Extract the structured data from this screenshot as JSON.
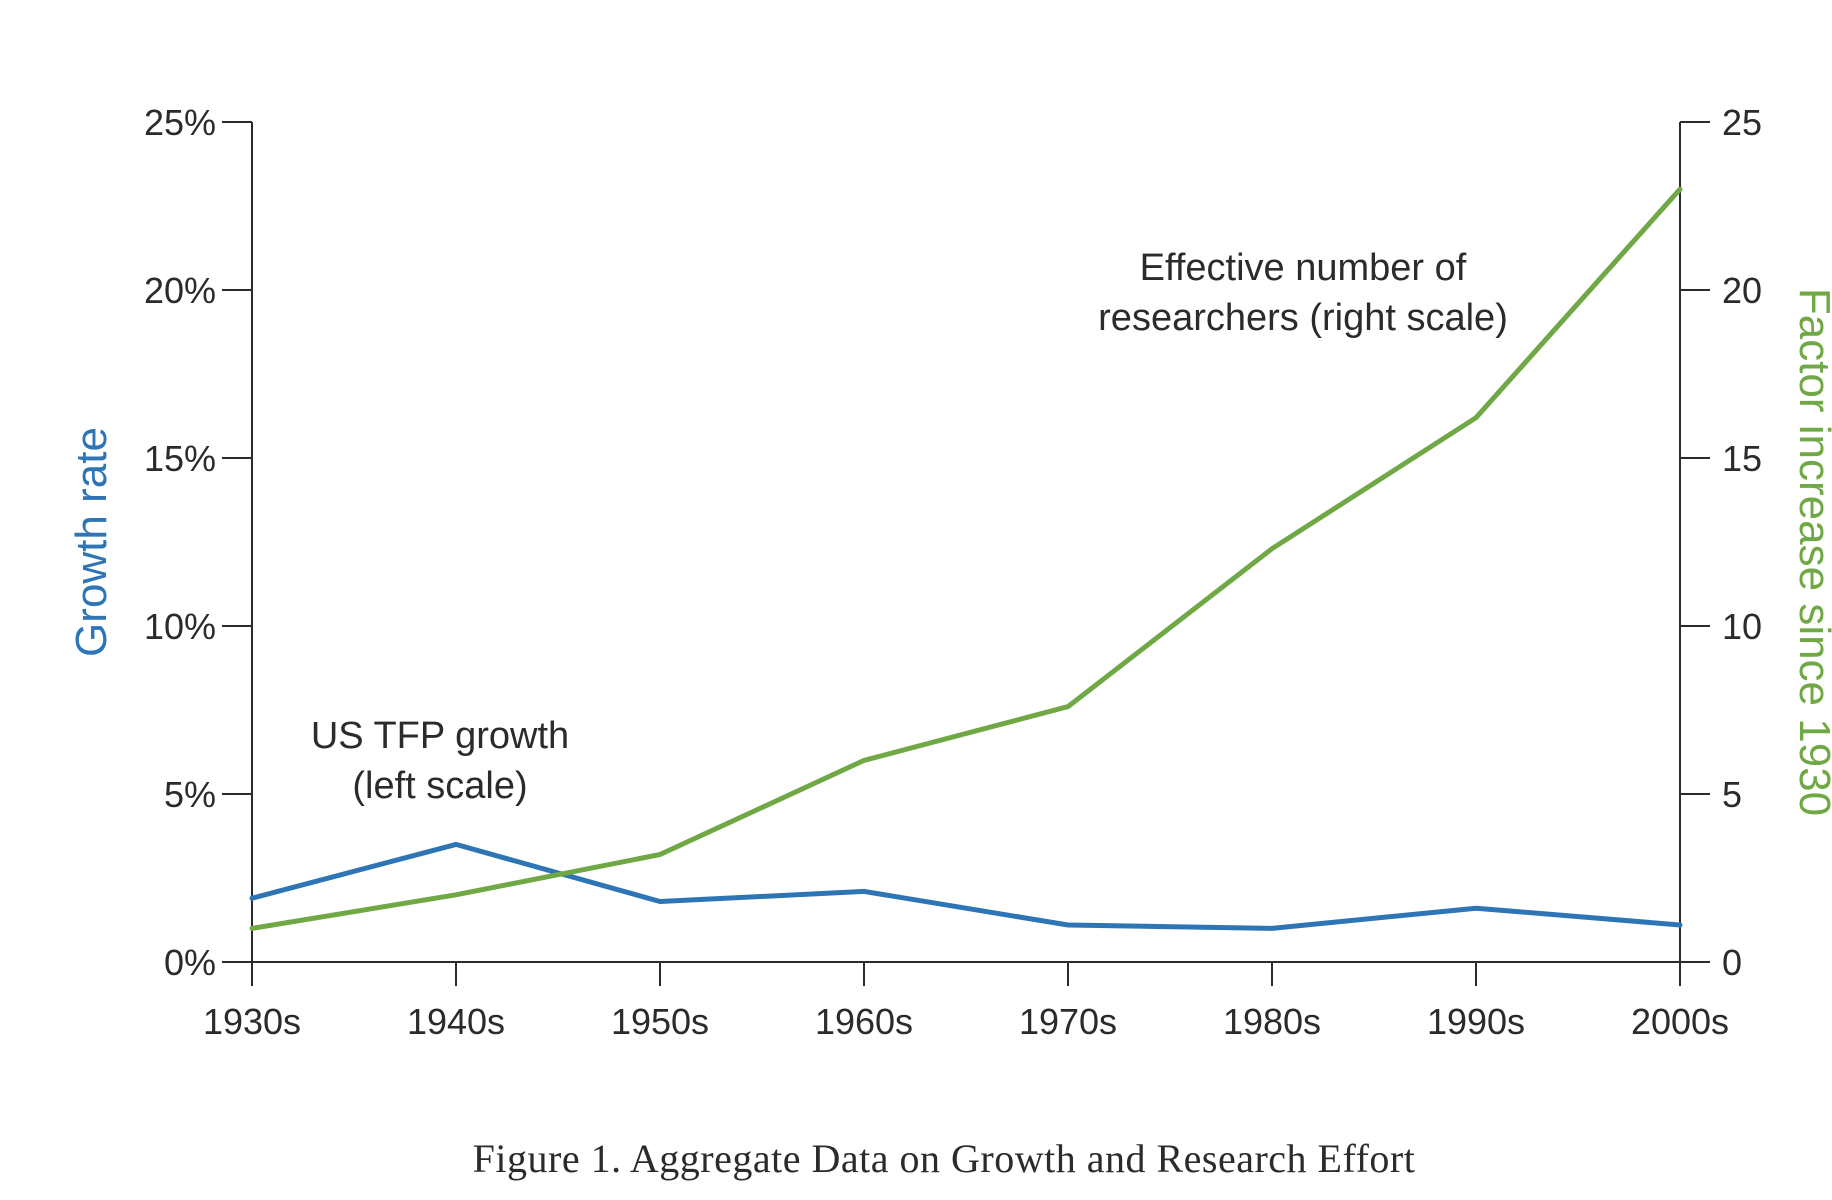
{
  "chart_data": {
    "type": "line",
    "caption": "Figure 1. Aggregate Data on Growth and Research Effort",
    "categories": [
      "1930s",
      "1940s",
      "1950s",
      "1960s",
      "1970s",
      "1980s",
      "1990s",
      "2000s"
    ],
    "left_axis": {
      "label": "Growth rate",
      "ylim": [
        0,
        25
      ],
      "ticks": [
        0,
        5,
        10,
        15,
        20,
        25
      ],
      "tick_labels": [
        "0%",
        "5%",
        "10%",
        "15%",
        "20%",
        "25%"
      ]
    },
    "right_axis": {
      "label": "Factor increase since 1930",
      "ylim": [
        0,
        25
      ],
      "ticks": [
        0,
        5,
        10,
        15,
        20,
        25
      ],
      "tick_labels": [
        "0",
        "5",
        "10",
        "15",
        "20",
        "25"
      ]
    },
    "series": [
      {
        "axis": "left",
        "color": "#2e75b6",
        "values": [
          1.9,
          3.5,
          1.8,
          2.1,
          1.1,
          1.0,
          1.6,
          1.1
        ],
        "annotation": [
          "US TFP growth",
          "(left scale)"
        ]
      },
      {
        "axis": "right",
        "color": "#70a845",
        "values": [
          1.0,
          2.0,
          3.2,
          6.0,
          7.6,
          12.3,
          16.2,
          23.0
        ],
        "annotation": [
          "Effective number of",
          "researchers (right scale)"
        ]
      }
    ],
    "grid": false
  },
  "colors": {
    "axis": "#2b2b2b",
    "left_label": "#2e75b6",
    "right_label": "#70a845"
  }
}
